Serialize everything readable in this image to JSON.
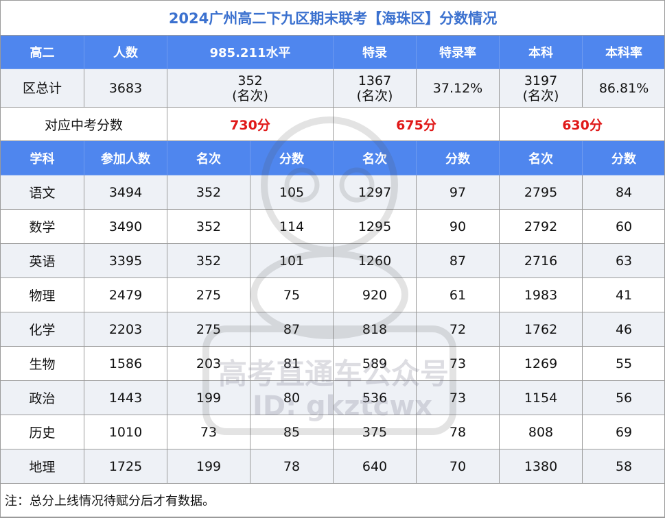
{
  "title": "2024广州高二下九区期末联考【海珠区】分数情况",
  "summary_header": [
    "高二",
    "人数",
    "985.211水平",
    "特录",
    "特录率",
    "本科",
    "本科率"
  ],
  "total_row": {
    "label": "区总计",
    "count": "3683",
    "level_985_211": "352\n(名次)",
    "special": "1367\n(名次)",
    "special_rate": "37.12%",
    "undergrad": "3197\n(名次)",
    "undergrad_rate": "86.81%"
  },
  "score_row": {
    "label": "对应中考分数",
    "score_985_211": "730分",
    "score_special": "675分",
    "score_undergrad": "630分"
  },
  "subject_header": [
    "学科",
    "参加人数",
    "名次",
    "分数",
    "名次",
    "分数",
    "名次",
    "分数"
  ],
  "subjects": [
    [
      "语文",
      "3494",
      "352",
      "105",
      "1297",
      "97",
      "2795",
      "84"
    ],
    [
      "数学",
      "3490",
      "352",
      "114",
      "1295",
      "90",
      "2792",
      "60"
    ],
    [
      "英语",
      "3395",
      "352",
      "101",
      "1260",
      "87",
      "2716",
      "63"
    ],
    [
      "物理",
      "2479",
      "275",
      "75",
      "920",
      "61",
      "1983",
      "41"
    ],
    [
      "化学",
      "2203",
      "275",
      "87",
      "818",
      "72",
      "1762",
      "46"
    ],
    [
      "生物",
      "1586",
      "203",
      "81",
      "589",
      "73",
      "1269",
      "55"
    ],
    [
      "政治",
      "1443",
      "199",
      "80",
      "536",
      "73",
      "1154",
      "56"
    ],
    [
      "历史",
      "1010",
      "73",
      "85",
      "375",
      "78",
      "808",
      "69"
    ],
    [
      "地理",
      "1725",
      "199",
      "78",
      "640",
      "70",
      "1380",
      "58"
    ]
  ],
  "note": "注：总分上线情况待赋分后才有数据。",
  "watermark": {
    "line1": "高考直通车公众号",
    "line2": "ID: gkztcwx"
  },
  "colors": {
    "title": "#3b71cf",
    "header_bg": "#4f86ee",
    "highlight": "#e01919"
  }
}
